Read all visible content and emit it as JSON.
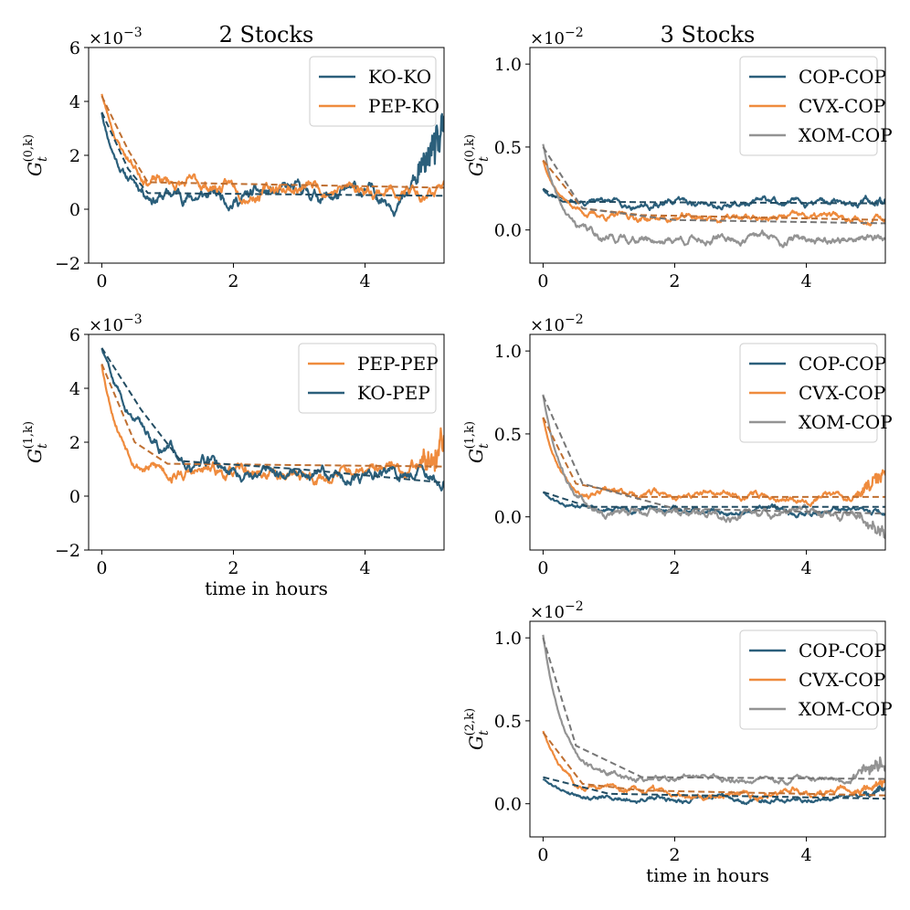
{
  "figure": {
    "column_titles": [
      "2 Stocks",
      "3 Stocks"
    ]
  },
  "chart_data": [
    {
      "id": "p00",
      "type": "line",
      "title": "2 Stocks",
      "ylabel_main": "G",
      "ylabel_sub": "t",
      "ylabel_sup": "(0,k)",
      "xlabel": "",
      "xlim": [
        -0.2,
        5.2
      ],
      "ylim": [
        -2,
        6
      ],
      "xticks": [
        0,
        2,
        4
      ],
      "yticks": [
        -2,
        0,
        2,
        4,
        6
      ],
      "ytick_labels": [
        "−2",
        "0",
        "2",
        "4",
        "6"
      ],
      "exponent_label": "×10",
      "exponent_power": "−3",
      "legend_position": "top-right",
      "series": [
        {
          "name": "KO-KO",
          "color": "#2b5f7b",
          "start": 3.6,
          "tau": 0.28,
          "fit_level": 0.5,
          "noise": 0.5,
          "seed": 11,
          "tail_up": 2.0,
          "fit": [
            [
              0.0,
              3.6
            ],
            [
              0.4,
              1.5
            ],
            [
              0.7,
              0.6
            ],
            [
              5.2,
              0.5
            ]
          ]
        },
        {
          "name": "PEP-KO",
          "color": "#ef8b3d",
          "start": 4.3,
          "tau": 0.35,
          "fit_level": 0.8,
          "noise": 0.45,
          "seed": 23,
          "tail_up": 0.0,
          "fit": [
            [
              0.0,
              4.2
            ],
            [
              0.4,
              2.2
            ],
            [
              0.7,
              1.0
            ],
            [
              5.2,
              0.8
            ]
          ]
        }
      ]
    },
    {
      "id": "p01",
      "type": "line",
      "title": "3 Stocks",
      "ylabel_main": "G",
      "ylabel_sub": "t",
      "ylabel_sup": "(0,k)",
      "xlabel": "",
      "xlim": [
        -0.2,
        5.2
      ],
      "ylim": [
        -0.2,
        1.1
      ],
      "xticks": [
        0,
        2,
        4
      ],
      "yticks": [
        0.0,
        0.5,
        1.0
      ],
      "ytick_labels": [
        "0.0",
        "0.5",
        "1.0"
      ],
      "exponent_label": "×10",
      "exponent_power": "−2",
      "legend_position": "top-right",
      "series": [
        {
          "name": "COP-COP",
          "color": "#2b5f7b",
          "start": 0.25,
          "tau": 0.2,
          "fit_level": 0.16,
          "noise": 0.04,
          "seed": 31,
          "tail_up": 0.05,
          "fit": [
            [
              0.0,
              0.25
            ],
            [
              0.3,
              0.17
            ],
            [
              5.2,
              0.16
            ]
          ]
        },
        {
          "name": "CVX-COP",
          "color": "#ef8b3d",
          "start": 0.42,
          "tau": 0.3,
          "fit_level": 0.07,
          "noise": 0.04,
          "seed": 37,
          "tail_up": 0.0,
          "fit": [
            [
              0.0,
              0.42
            ],
            [
              0.6,
              0.13
            ],
            [
              1.5,
              0.09
            ],
            [
              5.2,
              0.06
            ]
          ]
        },
        {
          "name": "XOM-COP",
          "color": "#939393",
          "start": 0.52,
          "tau": 0.25,
          "fit_level": -0.05,
          "noise": 0.05,
          "seed": 41,
          "tail_up": 0.0,
          "fit": [
            [
              0.0,
              0.5
            ],
            [
              0.6,
              0.13
            ],
            [
              2.0,
              0.06
            ],
            [
              5.2,
              0.04
            ]
          ]
        }
      ]
    },
    {
      "id": "p10",
      "type": "line",
      "title": "",
      "ylabel_main": "G",
      "ylabel_sub": "t",
      "ylabel_sup": "(1,k)",
      "xlabel": "time in hours",
      "xlim": [
        -0.2,
        5.2
      ],
      "ylim": [
        -2,
        6
      ],
      "xticks": [
        0,
        2,
        4
      ],
      "yticks": [
        -2,
        0,
        2,
        4,
        6
      ],
      "ytick_labels": [
        "−2",
        "0",
        "2",
        "4",
        "6"
      ],
      "exponent_label": "×10",
      "exponent_power": "−3",
      "legend_position": "top-right",
      "series": [
        {
          "name": "PEP-PEP",
          "color": "#ef8b3d",
          "start": 4.9,
          "tau": 0.3,
          "fit_level": 0.8,
          "noise": 0.45,
          "seed": 53,
          "tail_up": 1.5,
          "fit": [
            [
              0.0,
              4.9
            ],
            [
              0.5,
              2.0
            ],
            [
              1.0,
              1.2
            ],
            [
              5.2,
              1.1
            ]
          ]
        },
        {
          "name": "KO-PEP",
          "color": "#2b5f7b",
          "start": 5.5,
          "tau": 0.6,
          "fit_level": 0.9,
          "noise": 0.45,
          "seed": 59,
          "tail_up": 0.0,
          "fit": [
            [
              0.0,
              5.5
            ],
            [
              0.6,
              3.2
            ],
            [
              1.2,
              1.3
            ],
            [
              3.0,
              1.0
            ],
            [
              5.2,
              0.5
            ]
          ]
        }
      ]
    },
    {
      "id": "p11",
      "type": "line",
      "title": "",
      "ylabel_main": "G",
      "ylabel_sub": "t",
      "ylabel_sup": "(1,k)",
      "xlabel": "",
      "xlim": [
        -0.2,
        5.2
      ],
      "ylim": [
        -0.2,
        1.1
      ],
      "xticks": [
        0,
        2,
        4
      ],
      "yticks": [
        0.0,
        0.5,
        1.0
      ],
      "ytick_labels": [
        "0.0",
        "0.5",
        "1.0"
      ],
      "exponent_label": "×10",
      "exponent_power": "−2",
      "legend_position": "top-right",
      "series": [
        {
          "name": "COP-COP",
          "color": "#2b5f7b",
          "start": 0.15,
          "tau": 0.3,
          "fit_level": 0.03,
          "noise": 0.035,
          "seed": 61,
          "tail_up": 0.0,
          "fit": [
            [
              0.0,
              0.15
            ],
            [
              0.7,
              0.06
            ],
            [
              5.2,
              0.06
            ]
          ]
        },
        {
          "name": "CVX-COP",
          "color": "#ef8b3d",
          "start": 0.6,
          "tau": 0.25,
          "fit_level": 0.13,
          "noise": 0.04,
          "seed": 67,
          "tail_up": 0.12,
          "fit": [
            [
              0.0,
              0.6
            ],
            [
              0.5,
              0.2
            ],
            [
              1.5,
              0.12
            ],
            [
              5.2,
              0.12
            ]
          ]
        },
        {
          "name": "XOM-COP",
          "color": "#939393",
          "start": 0.74,
          "tau": 0.28,
          "fit_level": 0.02,
          "noise": 0.05,
          "seed": 71,
          "tail_up": -0.1,
          "fit": [
            [
              0.0,
              0.73
            ],
            [
              0.6,
              0.2
            ],
            [
              2.0,
              0.05
            ],
            [
              5.2,
              0.02
            ]
          ]
        }
      ]
    },
    {
      "id": "p21",
      "type": "line",
      "title": "",
      "ylabel_main": "G",
      "ylabel_sub": "t",
      "ylabel_sup": "(2,k)",
      "xlabel": "time in hours",
      "xlim": [
        -0.2,
        5.2
      ],
      "ylim": [
        -0.2,
        1.1
      ],
      "xticks": [
        0,
        2,
        4
      ],
      "yticks": [
        0.0,
        0.5,
        1.0
      ],
      "ytick_labels": [
        "0.0",
        "0.5",
        "1.0"
      ],
      "exponent_label": "×10",
      "exponent_power": "−2",
      "legend_position": "top-right",
      "series": [
        {
          "name": "COP-COP",
          "color": "#2b5f7b",
          "start": 0.15,
          "tau": 0.4,
          "fit_level": 0.03,
          "noise": 0.03,
          "seed": 79,
          "tail_up": 0.05,
          "fit": [
            [
              0.0,
              0.16
            ],
            [
              1.0,
              0.06
            ],
            [
              5.2,
              0.03
            ]
          ]
        },
        {
          "name": "CVX-COP",
          "color": "#ef8b3d",
          "start": 0.44,
          "tau": 0.3,
          "fit_level": 0.07,
          "noise": 0.04,
          "seed": 83,
          "tail_up": 0.05,
          "fit": [
            [
              0.0,
              0.43
            ],
            [
              0.6,
              0.12
            ],
            [
              1.5,
              0.08
            ],
            [
              5.2,
              0.05
            ]
          ]
        },
        {
          "name": "XOM-COP",
          "color": "#939393",
          "start": 1.02,
          "tau": 0.3,
          "fit_level": 0.15,
          "noise": 0.035,
          "seed": 89,
          "tail_up": 0.1,
          "fit": [
            [
              0.0,
              1.0
            ],
            [
              0.5,
              0.35
            ],
            [
              1.5,
              0.16
            ],
            [
              5.2,
              0.15
            ]
          ]
        }
      ]
    }
  ]
}
